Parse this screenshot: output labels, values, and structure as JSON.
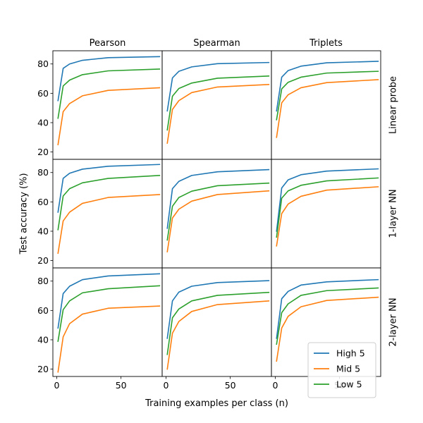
{
  "chart_data": {
    "type": "line",
    "ylabel": "Test accuracy (%)",
    "xlabel": "Training examples per class (n)",
    "columns": [
      "Pearson",
      "Spearman",
      "Triplets"
    ],
    "rows": [
      "Linear probe",
      "1-layer NN",
      "2-layer NN"
    ],
    "xlim": [
      -3,
      82
    ],
    "ylim": [
      15,
      89
    ],
    "xticks": [
      0,
      50
    ],
    "yticks": [
      20,
      40,
      60,
      80
    ],
    "x": [
      1,
      5,
      10,
      20,
      40,
      80
    ],
    "legend": {
      "position": "bottom-right",
      "panel": "2-layer NN / Triplets"
    },
    "series_meta": [
      {
        "name": "High 5",
        "color": "#1f77b4"
      },
      {
        "name": "Mid 5",
        "color": "#ff7f0e"
      },
      {
        "name": "Low 5",
        "color": "#2ca02c"
      }
    ],
    "panels": [
      {
        "row": "Linear probe",
        "column": "Pearson",
        "series": [
          {
            "name": "High 5",
            "values": [
              55,
              77,
              80,
              82.5,
              84.3,
              85
            ]
          },
          {
            "name": "Mid 5",
            "values": [
              25,
              47.5,
              53,
              58.3,
              62,
              63.8
            ]
          },
          {
            "name": "Low 5",
            "values": [
              43,
              65,
              69,
              72.7,
              75.3,
              76.5
            ]
          }
        ]
      },
      {
        "row": "Linear probe",
        "column": "Spearman",
        "series": [
          {
            "name": "High 5",
            "values": [
              48,
              70.5,
              75,
              78,
              80.2,
              81
            ]
          },
          {
            "name": "Mid 5",
            "values": [
              26,
              49,
              55,
              60.5,
              64.3,
              66
            ]
          },
          {
            "name": "Low 5",
            "values": [
              35,
              58,
              63.3,
              67,
              70.3,
              71.8
            ]
          }
        ]
      },
      {
        "row": "Linear probe",
        "column": "Triplets",
        "series": [
          {
            "name": "High 5",
            "values": [
              48,
              71,
              75.5,
              78.5,
              80.8,
              81.8
            ]
          },
          {
            "name": "Mid 5",
            "values": [
              30,
              53.5,
              59,
              63.8,
              67.3,
              69.3
            ]
          },
          {
            "name": "Low 5",
            "values": [
              42,
              63,
              67.5,
              71,
              73.8,
              75
            ]
          }
        ]
      },
      {
        "row": "1-layer NN",
        "column": "Pearson",
        "series": [
          {
            "name": "High 5",
            "values": [
              53,
              76,
              79.5,
              82.3,
              84.3,
              85.5
            ]
          },
          {
            "name": "Mid 5",
            "values": [
              25,
              47,
              53,
              59,
              63,
              65
            ]
          },
          {
            "name": "Low 5",
            "values": [
              41,
              64,
              69,
              73,
              76,
              78
            ]
          }
        ]
      },
      {
        "row": "1-layer NN",
        "column": "Spearman",
        "series": [
          {
            "name": "High 5",
            "values": [
              42,
              69,
              74,
              78,
              80.5,
              82
            ]
          },
          {
            "name": "Mid 5",
            "values": [
              26,
              49,
              55,
              60.5,
              65,
              67.5
            ]
          },
          {
            "name": "Low 5",
            "values": [
              34,
              57,
              63,
              67.3,
              71,
              72.8
            ]
          }
        ]
      },
      {
        "row": "1-layer NN",
        "column": "Triplets",
        "series": [
          {
            "name": "High 5",
            "values": [
              40,
              69.5,
              75,
              78.5,
              81,
              82.5
            ]
          },
          {
            "name": "Mid 5",
            "values": [
              30,
              52,
              58.5,
              63.8,
              68,
              70.3
            ]
          },
          {
            "name": "Low 5",
            "values": [
              36,
              62.5,
              67.5,
              71.3,
              74.3,
              76.3
            ]
          }
        ]
      },
      {
        "row": "2-layer NN",
        "column": "Pearson",
        "series": [
          {
            "name": "High 5",
            "values": [
              48,
              71.5,
              76.5,
              81,
              83.5,
              85
            ]
          },
          {
            "name": "Mid 5",
            "values": [
              18,
              42,
              51,
              57.5,
              61.5,
              63
            ]
          },
          {
            "name": "Low 5",
            "values": [
              39,
              60.5,
              66.5,
              72,
              74.8,
              76.8
            ]
          }
        ]
      },
      {
        "row": "2-layer NN",
        "column": "Spearman",
        "series": [
          {
            "name": "High 5",
            "values": [
              41,
              66.5,
              72.5,
              76.5,
              79,
              80.3
            ]
          },
          {
            "name": "Mid 5",
            "values": [
              20,
              44.5,
              52.5,
              59.3,
              64,
              66.5
            ]
          },
          {
            "name": "Low 5",
            "values": [
              30,
              55,
              61,
              66.5,
              70.3,
              72.3
            ]
          }
        ]
      },
      {
        "row": "2-layer NN",
        "column": "Triplets",
        "series": [
          {
            "name": "High 5",
            "values": [
              41,
              68,
              73,
              77.3,
              79.5,
              81
            ]
          },
          {
            "name": "Mid 5",
            "values": [
              25.5,
              48,
              56,
              62.5,
              66.8,
              69
            ]
          },
          {
            "name": "Low 5",
            "values": [
              37,
              58.5,
              64.5,
              70.3,
              73.5,
              75.3
            ]
          }
        ]
      }
    ]
  }
}
